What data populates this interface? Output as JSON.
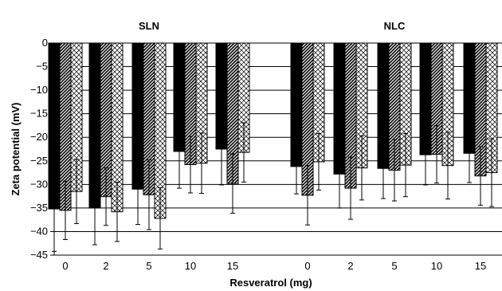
{
  "chart_data": {
    "type": "bar",
    "ylabel": "Zeta potential (mV)",
    "xlabel": "Resveratrol (mg)",
    "ylim": [
      -45,
      0
    ],
    "yticks": [
      0,
      -5,
      -10,
      -15,
      -20,
      -25,
      -30,
      -35,
      -40,
      -45
    ],
    "grid": true,
    "groups": [
      {
        "title": "SLN",
        "categories": [
          "0",
          "2",
          "5",
          "10",
          "15"
        ],
        "series": [
          {
            "values": [
              -35.2,
              -35.0,
              -31.0,
              -23.0,
              -22.5
            ],
            "errors": [
              9.0,
              7.8,
              7.5,
              7.8,
              7.6
            ],
            "pattern": "solid"
          },
          {
            "values": [
              -35.5,
              -32.6,
              -32.2,
              -25.8,
              -29.8
            ],
            "errors": [
              6.2,
              6.1,
              7.4,
              6.0,
              6.3
            ],
            "pattern": "diagonal"
          },
          {
            "values": [
              -31.5,
              -35.8,
              -37.2,
              -25.5,
              -23.2
            ],
            "errors": [
              6.8,
              6.3,
              6.5,
              6.4,
              6.3
            ],
            "pattern": "crosshatch"
          }
        ]
      },
      {
        "title": "NLC",
        "categories": [
          "0",
          "2",
          "5",
          "10",
          "15"
        ],
        "series": [
          {
            "values": [
              -26.2,
              -27.8,
              -26.6,
              -23.7,
              -23.4
            ],
            "errors": [
              5.8,
              7.2,
              6.4,
              6.4,
              6.2
            ],
            "pattern": "solid"
          },
          {
            "values": [
              -32.3,
              -30.8,
              -27.0,
              -23.6,
              -28.2
            ],
            "errors": [
              6.3,
              6.6,
              6.5,
              6.1,
              6.2
            ],
            "pattern": "diagonal"
          },
          {
            "values": [
              -25.2,
              -26.5,
              -25.9,
              -26.0,
              -27.5
            ],
            "errors": [
              6.0,
              6.8,
              6.7,
              7.1,
              7.2
            ],
            "pattern": "crosshatch"
          }
        ]
      }
    ]
  }
}
